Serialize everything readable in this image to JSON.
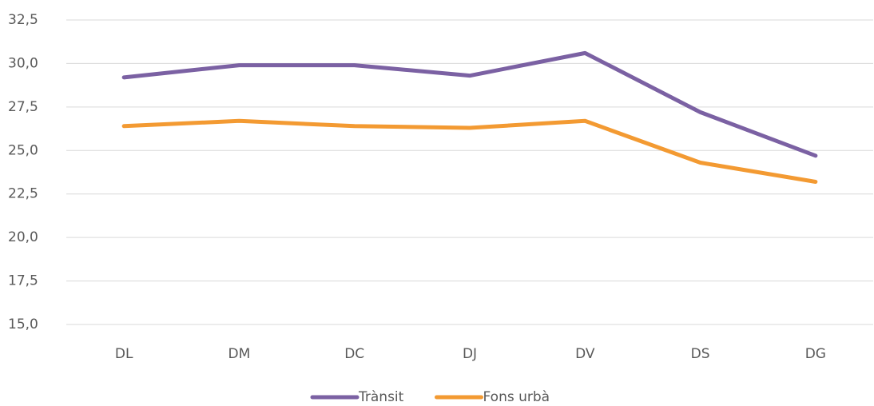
{
  "chart_data": {
    "type": "line",
    "categories": [
      "DL",
      "DM",
      "DC",
      "DJ",
      "DV",
      "DS",
      "DG"
    ],
    "series": [
      {
        "name": "Trànsit",
        "color": "#7b61a3",
        "values": [
          29.2,
          29.9,
          29.9,
          29.3,
          30.6,
          27.2,
          24.7
        ]
      },
      {
        "name": "Fons urbà",
        "color": "#f39a32",
        "values": [
          26.4,
          26.7,
          26.4,
          26.3,
          26.7,
          24.3,
          23.2
        ]
      }
    ],
    "ylim": [
      15,
      32.5
    ],
    "yticks": [
      {
        "value": 15,
        "label": "15,0"
      },
      {
        "value": 17.5,
        "label": "17,5"
      },
      {
        "value": 20,
        "label": "20,0"
      },
      {
        "value": 22.5,
        "label": "22,5"
      },
      {
        "value": 25,
        "label": "25,0"
      },
      {
        "value": 27.5,
        "label": "27,5"
      },
      {
        "value": 30,
        "label": "30,0"
      },
      {
        "value": 32.5,
        "label": "32,5"
      }
    ],
    "grid": true,
    "legend": "bottom"
  }
}
